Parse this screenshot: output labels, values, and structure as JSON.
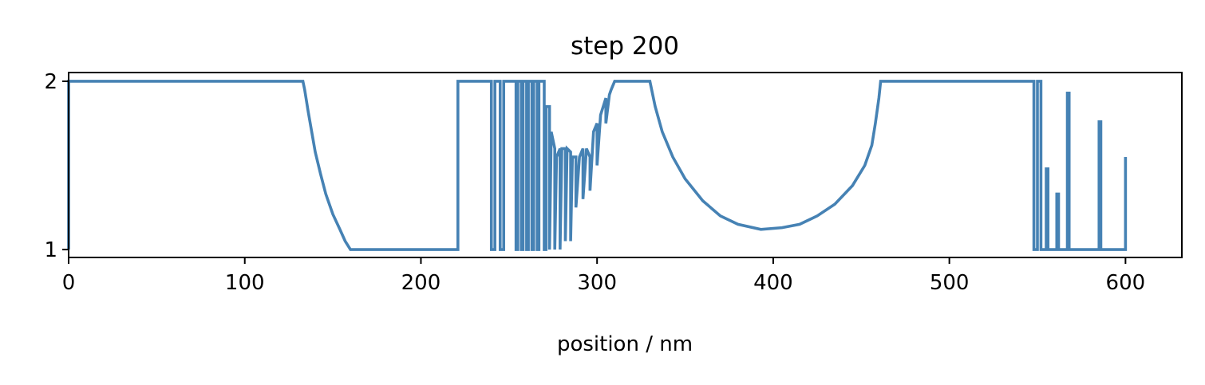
{
  "chart_data": {
    "type": "line",
    "title": "step 200",
    "x_label": "position / nm",
    "color": "#4682b4",
    "x": [
      0,
      0,
      133,
      134,
      136,
      138,
      140,
      143,
      146,
      150,
      154,
      157,
      160,
      221,
      221,
      240,
      240,
      242,
      242,
      245,
      245,
      247,
      247,
      254,
      254,
      255,
      255,
      257,
      257,
      258,
      258,
      260,
      260,
      261,
      261,
      263,
      263,
      264,
      264,
      266,
      266,
      267,
      267,
      270,
      270,
      271,
      271,
      273,
      273,
      274,
      276,
      276,
      277,
      279,
      279,
      280,
      282,
      282,
      283,
      285,
      285,
      286,
      288,
      288,
      290,
      292,
      292,
      294,
      296,
      296,
      298,
      300,
      300,
      302,
      305,
      305,
      307,
      308,
      310,
      330,
      333,
      337,
      343,
      350,
      360,
      370,
      380,
      393,
      405,
      415,
      425,
      435,
      445,
      452,
      456,
      458,
      460,
      461,
      548,
      548,
      550,
      550,
      552,
      552,
      555,
      555,
      556,
      556,
      561,
      561,
      562,
      562,
      567,
      567,
      568,
      568,
      585,
      585,
      586,
      586,
      600,
      600
    ],
    "values": [
      1,
      2,
      2,
      1.95,
      1.82,
      1.7,
      1.58,
      1.45,
      1.33,
      1.21,
      1.12,
      1.05,
      1,
      1,
      2,
      2,
      1,
      1,
      2,
      2,
      1,
      1,
      2,
      2,
      1,
      1,
      2,
      2,
      1,
      1,
      2,
      2,
      1,
      1,
      2,
      2,
      1,
      1,
      2,
      2,
      1,
      1,
      2,
      2,
      1,
      1,
      1.85,
      1.85,
      1,
      1.7,
      1.6,
      1,
      1.55,
      1.6,
      1,
      1.6,
      1.6,
      1.05,
      1.6,
      1.58,
      1.05,
      1.55,
      1.55,
      1.25,
      1.55,
      1.6,
      1.3,
      1.6,
      1.55,
      1.35,
      1.7,
      1.75,
      1.5,
      1.8,
      1.9,
      1.75,
      1.92,
      1.95,
      2,
      2,
      1.85,
      1.7,
      1.55,
      1.42,
      1.29,
      1.2,
      1.15,
      1.12,
      1.13,
      1.15,
      1.2,
      1.27,
      1.38,
      1.5,
      1.62,
      1.75,
      1.9,
      2,
      2,
      1,
      1,
      2,
      2,
      1,
      1,
      1.48,
      1.48,
      1,
      1,
      1.33,
      1.33,
      1,
      1,
      1.93,
      1.93,
      1,
      1,
      1.76,
      1.76,
      1,
      1,
      1.55
    ],
    "xlim": [
      0,
      632
    ],
    "ylim": [
      0.953,
      2.052
    ],
    "xticks": [
      0,
      100,
      200,
      300,
      400,
      500,
      600
    ],
    "yticks": [
      1,
      2
    ]
  }
}
